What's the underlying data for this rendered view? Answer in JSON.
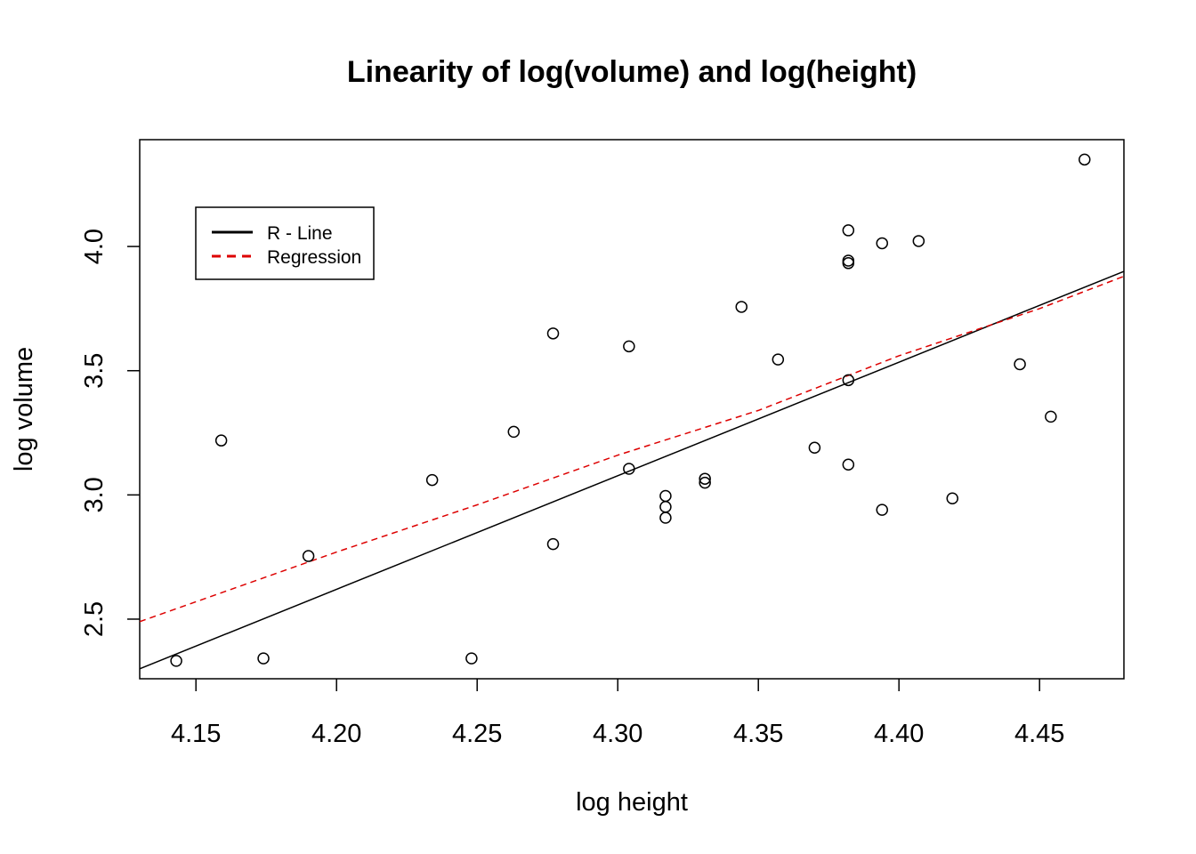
{
  "chart_data": {
    "type": "scatter",
    "title": "Linearity of log(volume) and log(height)",
    "xlabel": "log height",
    "ylabel": "log volume",
    "xlim": [
      4.13,
      4.48
    ],
    "ylim": [
      2.26,
      4.43
    ],
    "grid": false,
    "x_ticks": [
      4.15,
      4.2,
      4.25,
      4.3,
      4.35,
      4.4,
      4.45
    ],
    "x_tick_labels": [
      "4.15",
      "4.20",
      "4.25",
      "4.30",
      "4.35",
      "4.40",
      "4.45"
    ],
    "y_ticks": [
      2.5,
      3.0,
      3.5,
      4.0
    ],
    "y_tick_labels": [
      "2.5",
      "3.0",
      "3.5",
      "4.0"
    ],
    "points": [
      {
        "x": 4.143,
        "y": 2.332
      },
      {
        "x": 4.159,
        "y": 3.219
      },
      {
        "x": 4.174,
        "y": 2.342
      },
      {
        "x": 4.19,
        "y": 2.754
      },
      {
        "x": 4.234,
        "y": 3.06
      },
      {
        "x": 4.248,
        "y": 2.342
      },
      {
        "x": 4.263,
        "y": 3.254
      },
      {
        "x": 4.277,
        "y": 3.65
      },
      {
        "x": 4.277,
        "y": 2.802
      },
      {
        "x": 4.304,
        "y": 3.598
      },
      {
        "x": 4.304,
        "y": 3.105
      },
      {
        "x": 4.317,
        "y": 2.996
      },
      {
        "x": 4.317,
        "y": 2.952
      },
      {
        "x": 4.317,
        "y": 2.908
      },
      {
        "x": 4.331,
        "y": 3.065
      },
      {
        "x": 4.331,
        "y": 3.049
      },
      {
        "x": 4.344,
        "y": 3.757
      },
      {
        "x": 4.357,
        "y": 3.545
      },
      {
        "x": 4.37,
        "y": 3.19
      },
      {
        "x": 4.382,
        "y": 4.065
      },
      {
        "x": 4.382,
        "y": 3.943
      },
      {
        "x": 4.382,
        "y": 3.933
      },
      {
        "x": 4.382,
        "y": 3.462
      },
      {
        "x": 4.382,
        "y": 3.122
      },
      {
        "x": 4.394,
        "y": 4.013
      },
      {
        "x": 4.394,
        "y": 2.94
      },
      {
        "x": 4.407,
        "y": 4.022
      },
      {
        "x": 4.419,
        "y": 2.986
      },
      {
        "x": 4.443,
        "y": 3.526
      },
      {
        "x": 4.454,
        "y": 3.315
      },
      {
        "x": 4.466,
        "y": 4.35
      }
    ],
    "lines": [
      {
        "name": "R - Line",
        "color": "#000000",
        "dash": "solid",
        "x": [
          4.13,
          4.48
        ],
        "y": [
          2.3,
          3.9
        ]
      },
      {
        "name": "Regression",
        "color": "#dd0000",
        "dash": "dashed",
        "x": [
          4.13,
          4.2,
          4.25,
          4.3,
          4.35,
          4.4,
          4.45,
          4.48
        ],
        "y": [
          2.49,
          2.77,
          2.96,
          3.16,
          3.34,
          3.56,
          3.75,
          3.88
        ]
      }
    ],
    "legend": {
      "placement": "top-left",
      "entries": [
        {
          "label": "R - Line",
          "color": "#000000",
          "dash": "solid"
        },
        {
          "label": "Regression",
          "color": "#dd0000",
          "dash": "dashed"
        }
      ]
    }
  }
}
